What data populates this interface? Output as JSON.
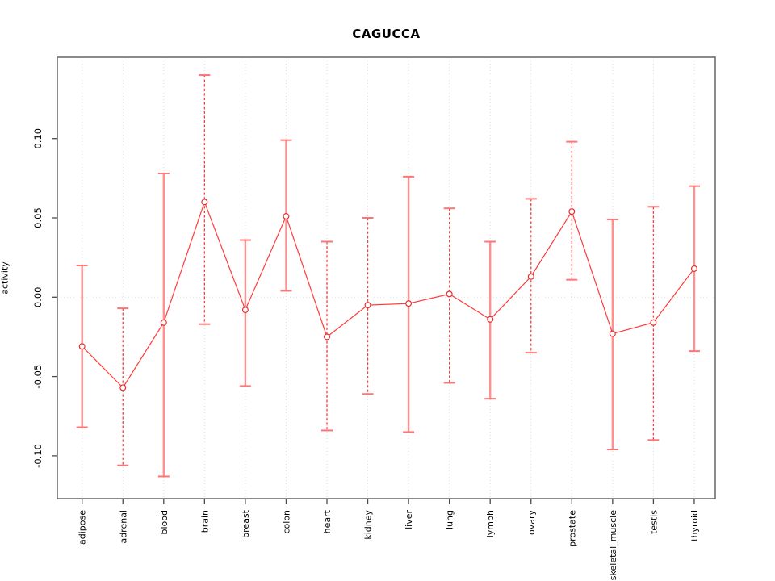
{
  "chart_data": {
    "type": "line",
    "title": "CAGUCCA",
    "xlabel": "",
    "ylabel": "activity",
    "categories": [
      "adipose",
      "adrenal",
      "blood",
      "brain",
      "breast",
      "colon",
      "heart",
      "kidney",
      "liver",
      "lung",
      "lymph",
      "ovary",
      "prostate",
      "skeletal_muscle",
      "testis",
      "thyroid"
    ],
    "series": [
      {
        "name": "activity",
        "values": [
          -0.031,
          -0.057,
          -0.016,
          0.06,
          -0.008,
          0.051,
          -0.025,
          -0.005,
          -0.004,
          0.002,
          -0.014,
          0.013,
          0.054,
          -0.023,
          -0.016,
          0.018
        ],
        "upper": [
          0.02,
          -0.007,
          0.078,
          0.14,
          0.036,
          0.099,
          0.035,
          0.05,
          0.076,
          0.056,
          0.035,
          0.062,
          0.098,
          0.049,
          0.057,
          0.07
        ],
        "lower": [
          -0.082,
          -0.106,
          -0.113,
          -0.017,
          -0.056,
          0.004,
          -0.084,
          -0.061,
          -0.085,
          -0.054,
          -0.064,
          -0.035,
          0.011,
          -0.096,
          -0.09,
          -0.034
        ]
      }
    ],
    "ytick_labels": [
      "0.10",
      "0.05",
      "0.00",
      "-0.05",
      "-0.10"
    ],
    "ytick_values": [
      0.1,
      0.05,
      0.0,
      -0.05,
      -0.1
    ],
    "ylim": [
      -0.127,
      0.151
    ],
    "legend": "none",
    "grid": {
      "vertical": "dotted line at every category",
      "horizontal": "dotted line at zero only"
    },
    "error_bar_styles": [
      "solid",
      "dashed",
      "solid",
      "dashed",
      "solid",
      "solid",
      "dashed",
      "dashed",
      "solid",
      "dashed",
      "solid",
      "dashed",
      "dashed",
      "solid",
      "dashed",
      "solid"
    ],
    "colors": {
      "line": "#ff3b3b",
      "point_stroke": "#e62e2e",
      "error_bar_solid": "#ff9090",
      "error_bar_dashed": "#f54040",
      "cap": "#ff7575",
      "grid": "#dadada",
      "zero_line": "#dedede",
      "axis_box": "#6e6e6e",
      "tick": "#4a4a4a",
      "text": "#000000"
    }
  }
}
